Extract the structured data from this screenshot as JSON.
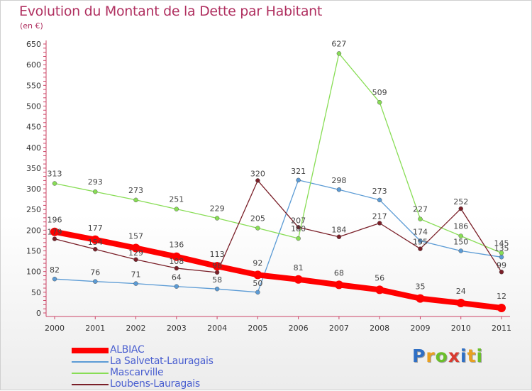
{
  "title": "Evolution du Montant de la Dette par Habitant",
  "unit": "(en €)",
  "brand": "Proxiti",
  "brand_colors": [
    "#2f6fc4",
    "#e8a020",
    "#6abf2a",
    "#d93a2f",
    "#2f6fc4",
    "#e8a020",
    "#6abf2a"
  ],
  "chart_data": {
    "type": "line",
    "title": "Evolution du Montant de la Dette par Habitant",
    "ylabel": "(en €)",
    "xlabel": "",
    "x": [
      "2000",
      "2001",
      "2002",
      "2003",
      "2004",
      "2005",
      "2006",
      "2007",
      "2008",
      "2009",
      "2010",
      "2011"
    ],
    "ylim": [
      0,
      650
    ],
    "yticks": [
      0,
      50,
      100,
      150,
      200,
      250,
      300,
      350,
      400,
      450,
      500,
      550,
      600,
      650
    ],
    "grid": false,
    "legend": "bottom-left",
    "series": [
      {
        "name": "ALBIAC",
        "color": "#ff0000",
        "values": [
          196,
          177,
          157,
          136,
          113,
          92,
          81,
          68,
          56,
          35,
          24,
          12
        ],
        "labels": [
          "196",
          "177",
          "157",
          "136",
          "113",
          "92",
          "81",
          "68",
          "56",
          "35",
          "24",
          "12"
        ]
      },
      {
        "name": "La Salvetat-Lauragais",
        "color": "#5b9bd5",
        "values": [
          82,
          76,
          71,
          64,
          58,
          50,
          321,
          298,
          273,
          174,
          150,
          135
        ],
        "labels": [
          "82",
          "76",
          "71",
          "64",
          "58",
          "50",
          "321",
          "298",
          "273",
          "174",
          "150",
          "135"
        ]
      },
      {
        "name": "Mascarville",
        "color": "#88dd55",
        "values": [
          313,
          293,
          273,
          251,
          229,
          205,
          180,
          627,
          509,
          227,
          186,
          145
        ],
        "labels": [
          "313",
          "293",
          "273",
          "251",
          "229",
          "205",
          "180",
          "627",
          "509",
          "227",
          "186",
          "145"
        ]
      },
      {
        "name": "Loubens-Lauragais",
        "color": "#7a1f28",
        "values": [
          179,
          154,
          129,
          108,
          98,
          null,
          207,
          184,
          217,
          155,
          252,
          99
        ],
        "labels": [
          "179",
          "154",
          "129",
          "108",
          "98",
          "320",
          "207",
          "184",
          "217",
          "155",
          "252",
          "99"
        ],
        "seg_2004_2005_2006": [
          98,
          320,
          207
        ]
      }
    ]
  }
}
